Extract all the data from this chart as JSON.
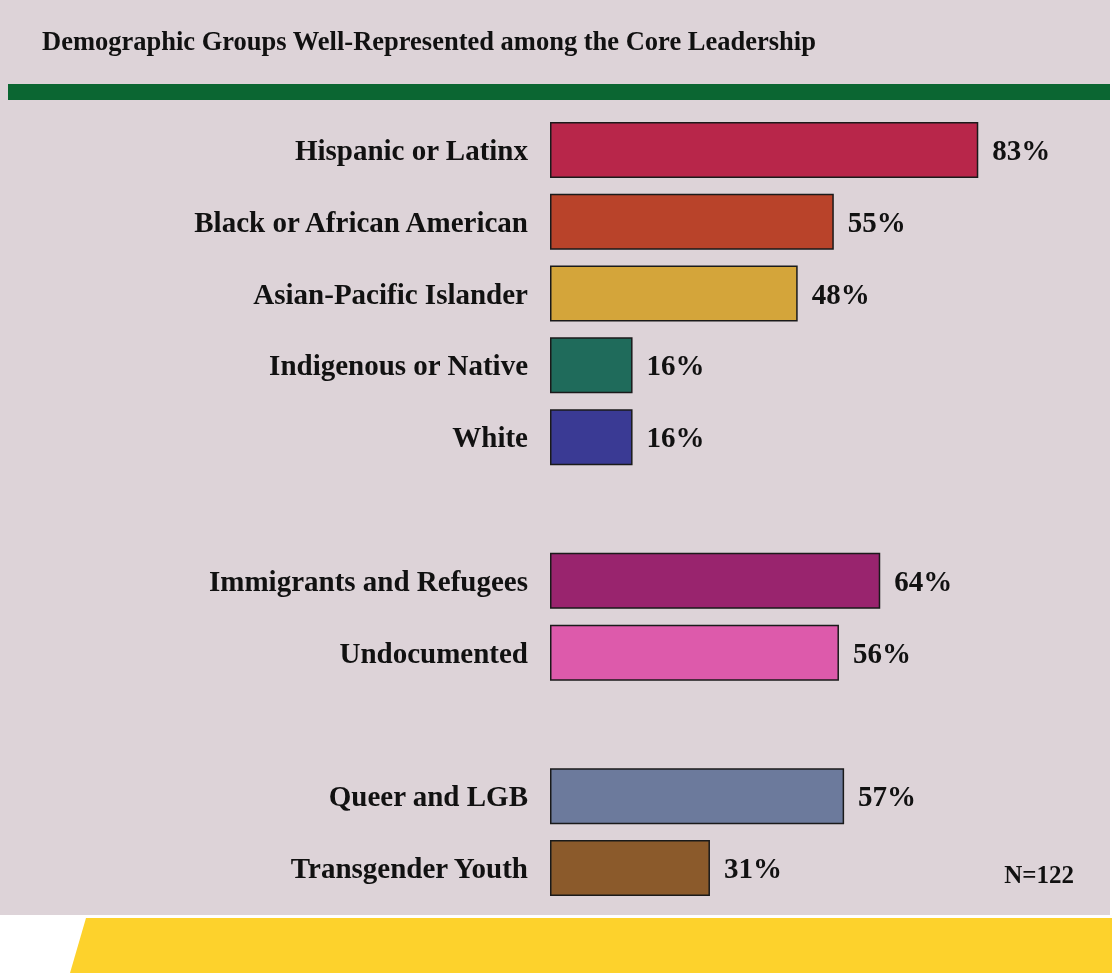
{
  "chart_data": {
    "type": "bar",
    "orientation": "horizontal",
    "title": "Demographic Groups Well-Represented among the Core Leadership",
    "categories": [
      "Hispanic or Latinx",
      "Black or African American",
      "Asian-Pacific Islander",
      "Indigenous or Native",
      "White",
      null,
      "Immigrants and Refugees",
      "Undocumented",
      null,
      "Queer and LGB",
      "Transgender Youth"
    ],
    "values": [
      83,
      55,
      48,
      16,
      16,
      null,
      64,
      56,
      null,
      57,
      31
    ],
    "colors": [
      "#b8264a",
      "#b9432a",
      "#d4a53a",
      "#1f6b5b",
      "#3a3a94",
      "#ddd3d8",
      "#99246e",
      "#dd5aab",
      "#ddd3d8",
      "#6c7a9c",
      "#8b5a2b"
    ],
    "value_labels": [
      "83%",
      "55%",
      "48%",
      "16%",
      "16%",
      null,
      "64%",
      "56%",
      null,
      "57%",
      "31%"
    ],
    "annotations": [
      "N=122"
    ]
  }
}
